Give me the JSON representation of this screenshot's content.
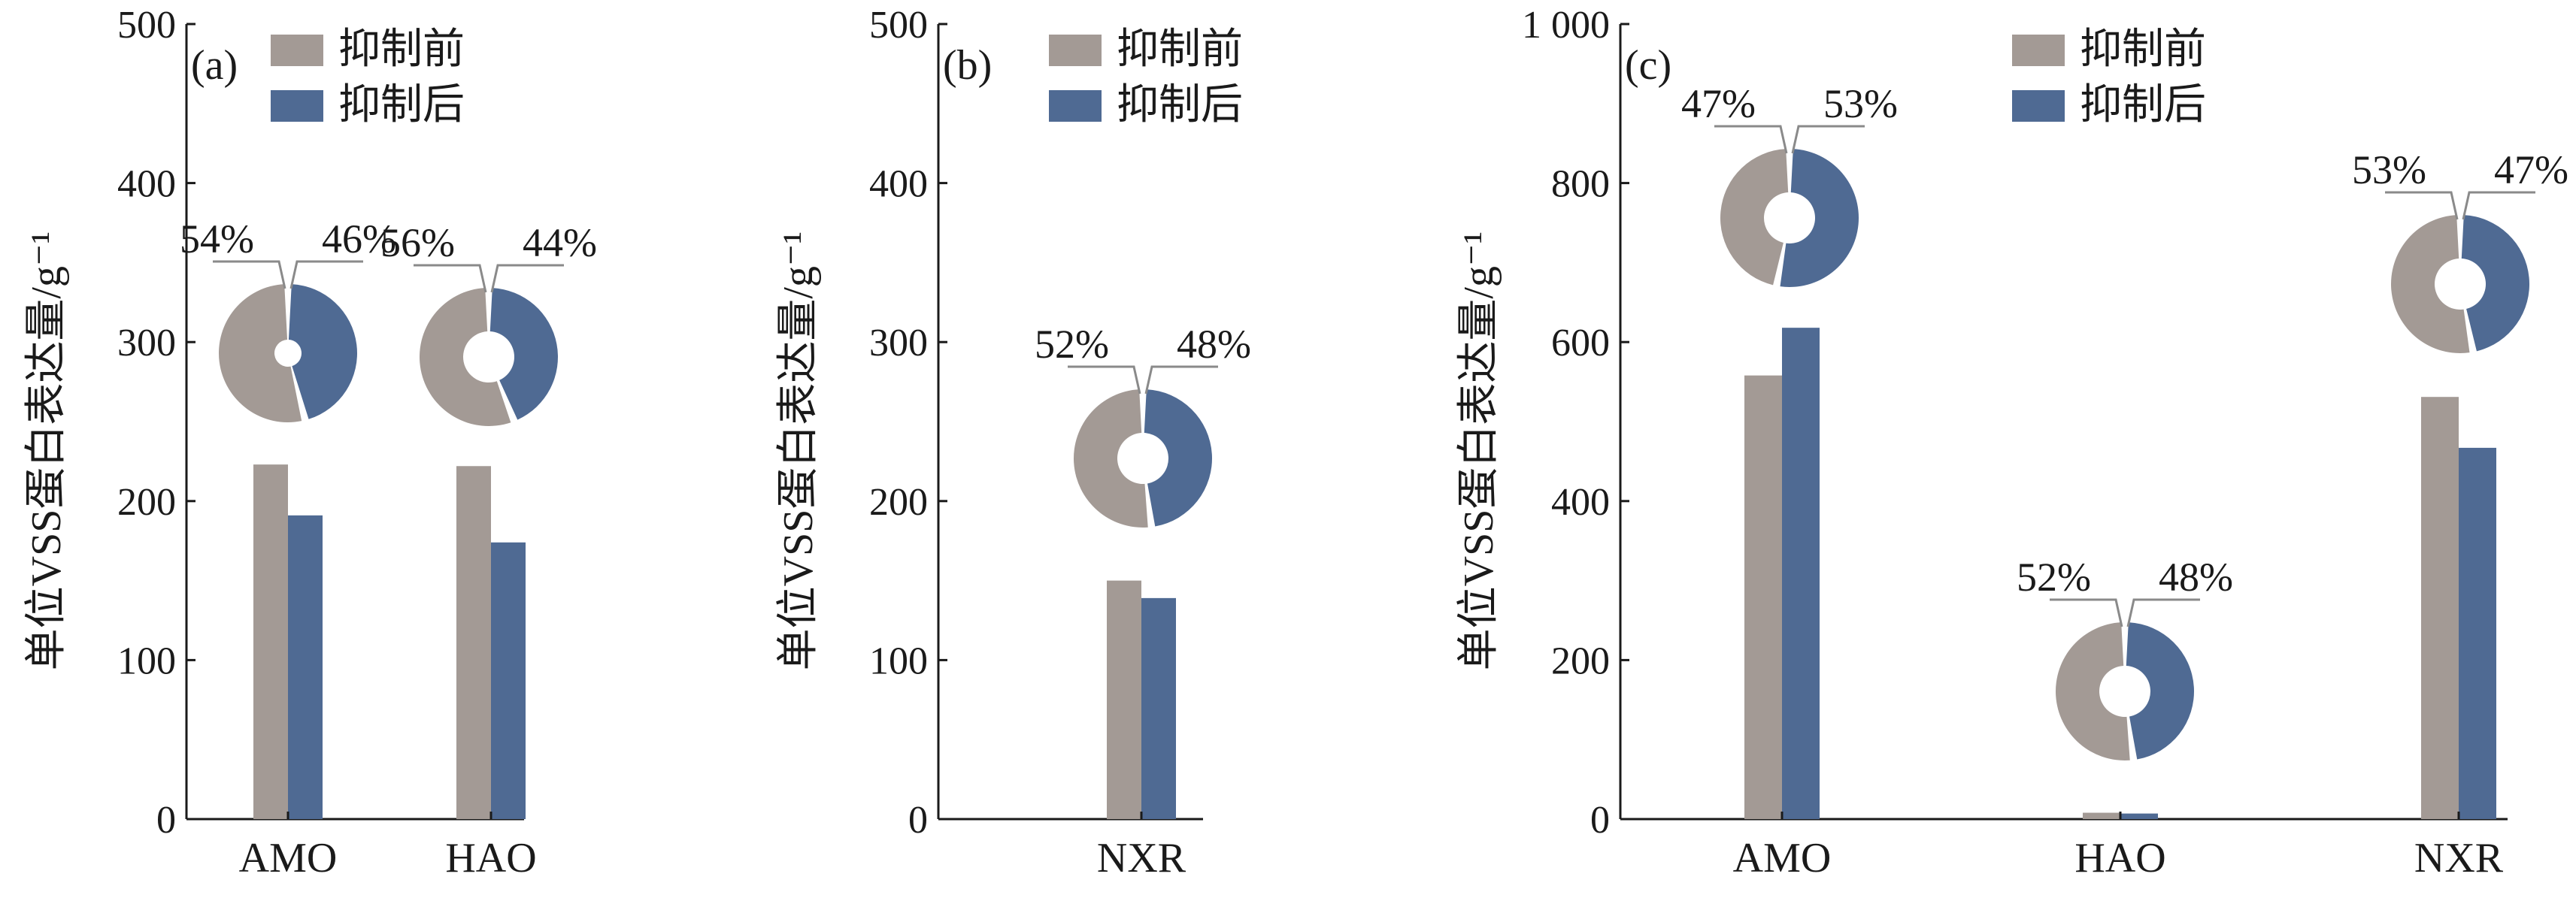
{
  "colors": {
    "before": "#a39a95",
    "after": "#4f6a93",
    "axis": "#1a1a1a"
  },
  "legend": {
    "before": "抑制前",
    "after": "抑制后"
  },
  "chart_data": [
    {
      "id": "a",
      "type": "bar",
      "panel_label": "(a)",
      "ylabel": "单位VSS蛋白表达量/g⁻¹",
      "ylim": [
        0,
        500
      ],
      "yticks": [
        "0",
        "100",
        "200",
        "300",
        "400",
        "500"
      ],
      "yticks_values": [
        0,
        100,
        200,
        300,
        400,
        500
      ],
      "categories": [
        "AMO",
        "HAO"
      ],
      "series": [
        {
          "name": "抑制前",
          "values": [
            223,
            222
          ]
        },
        {
          "name": "抑制后",
          "values": [
            191,
            174
          ]
        }
      ],
      "donuts": [
        {
          "category": "AMO",
          "before_pct": 54,
          "after_pct": 46,
          "before_label": "54%",
          "after_label": "46%",
          "hole": "small"
        },
        {
          "category": "HAO",
          "before_pct": 56,
          "after_pct": 44,
          "before_label": "56%",
          "after_label": "44%",
          "hole": "large"
        }
      ],
      "legend_position": "top-center"
    },
    {
      "id": "b",
      "type": "bar",
      "panel_label": "(b)",
      "ylabel": "单位VSS蛋白表达量/g⁻¹",
      "ylim": [
        0,
        500
      ],
      "yticks": [
        "0",
        "100",
        "200",
        "300",
        "400",
        "500"
      ],
      "yticks_values": [
        0,
        100,
        200,
        300,
        400,
        500
      ],
      "categories": [
        "NXR"
      ],
      "series": [
        {
          "name": "抑制前",
          "values": [
            150
          ]
        },
        {
          "name": "抑制后",
          "values": [
            139
          ]
        }
      ],
      "donuts": [
        {
          "category": "NXR",
          "before_pct": 52,
          "after_pct": 48,
          "before_label": "52%",
          "after_label": "48%",
          "hole": "large"
        }
      ],
      "legend_position": "top-right"
    },
    {
      "id": "c",
      "type": "bar",
      "panel_label": "(c)",
      "ylabel": "单位VSS蛋白表达量/g⁻¹",
      "ylim": [
        0,
        1000
      ],
      "yticks": [
        "0",
        "200",
        "400",
        "600",
        "800",
        "1 000"
      ],
      "yticks_values": [
        0,
        200,
        400,
        600,
        800,
        1000
      ],
      "categories": [
        "AMO",
        "HAO",
        "NXR"
      ],
      "series": [
        {
          "name": "抑制前",
          "values": [
            558,
            8,
            531
          ]
        },
        {
          "name": "抑制后",
          "values": [
            618,
            7,
            467
          ]
        }
      ],
      "donuts": [
        {
          "category": "AMO",
          "before_pct": 47,
          "after_pct": 53,
          "before_label": "47%",
          "after_label": "53%",
          "hole": "large"
        },
        {
          "category": "HAO",
          "before_pct": 52,
          "after_pct": 48,
          "before_label": "52%",
          "after_label": "48%",
          "hole": "large"
        },
        {
          "category": "NXR",
          "before_pct": 53,
          "after_pct": 47,
          "before_label": "53%",
          "after_label": "47%",
          "hole": "large"
        }
      ],
      "legend_position": "top-center"
    }
  ]
}
